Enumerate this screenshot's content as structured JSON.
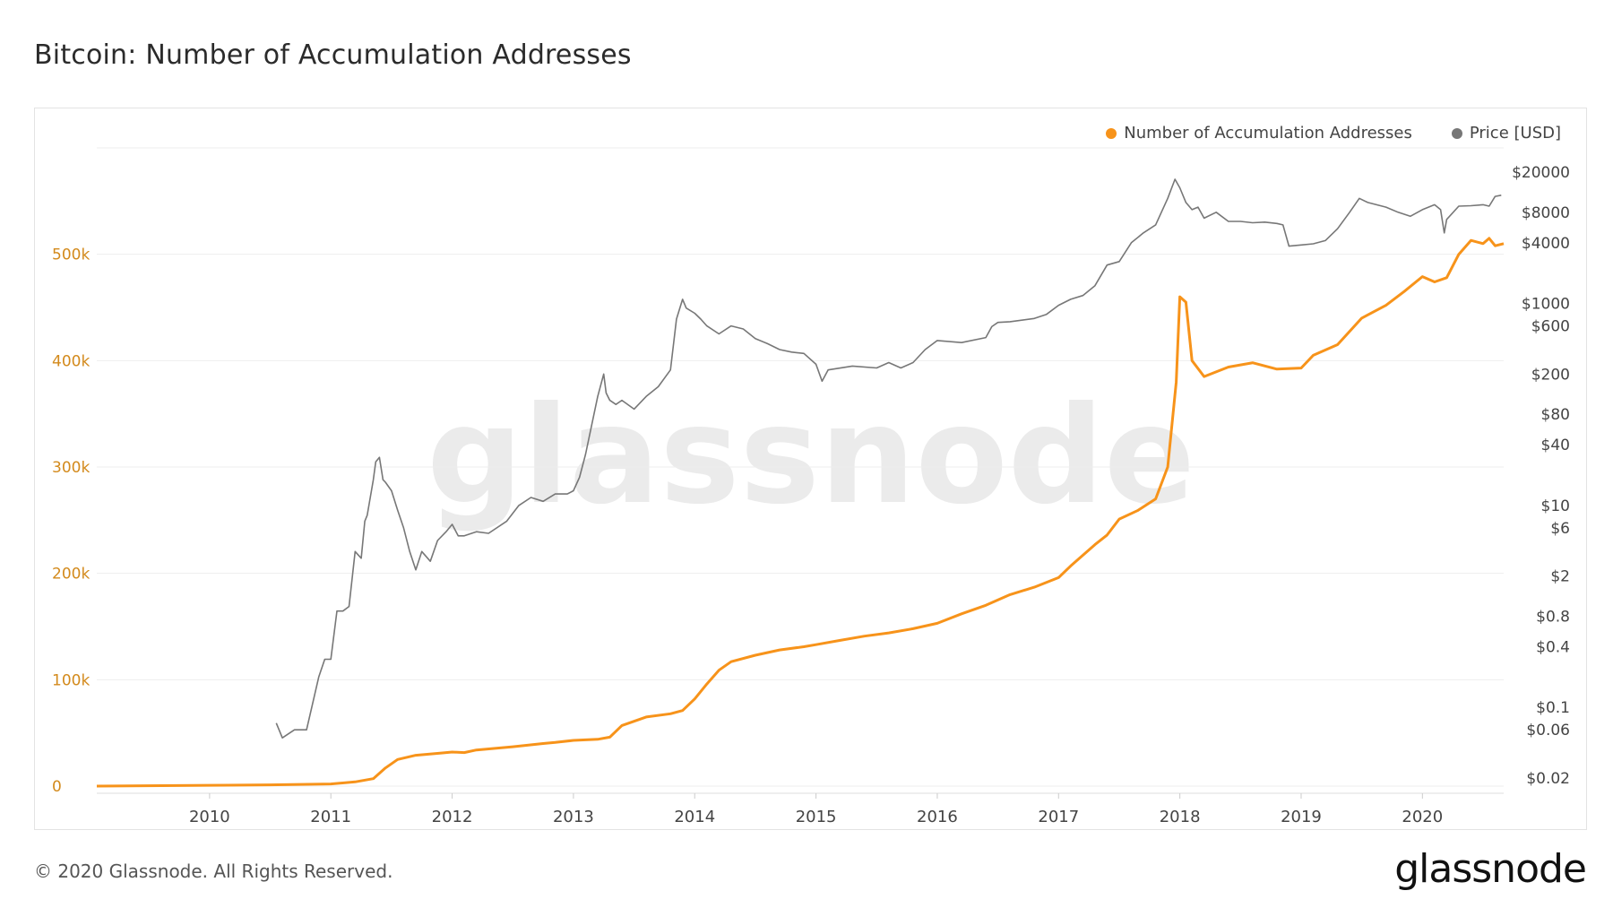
{
  "title": "Bitcoin: Number of Accumulation Addresses",
  "footer": "© 2020 Glassnode. All Rights Reserved.",
  "brand": "glassnode",
  "watermark": "glassnode",
  "colors": {
    "accumulation": "#f7931a",
    "price": "#777777",
    "left_axis_text": "#d38a1c",
    "grid": "#eeeeee",
    "watermark": "#ebebeb"
  },
  "chart_data": {
    "type": "line",
    "grid": true,
    "legend_position": "top-right",
    "x_ticks": [
      "2010",
      "2011",
      "2012",
      "2013",
      "2014",
      "2015",
      "2016",
      "2017",
      "2018",
      "2019",
      "2020"
    ],
    "xlim": [
      2009.07,
      2020.67
    ],
    "y_left": {
      "ticks": [
        0,
        100000,
        200000,
        300000,
        400000,
        500000
      ],
      "tick_labels": [
        "0",
        "100k",
        "200k",
        "300k",
        "400k",
        "500k"
      ],
      "ylim": [
        0,
        600000
      ]
    },
    "y_right": {
      "scale": "log",
      "ticks": [
        0.02,
        0.06,
        0.1,
        0.4,
        0.8,
        2,
        6,
        10,
        40,
        80,
        200,
        600,
        1000,
        4000,
        8000,
        20000
      ],
      "tick_labels": [
        "$0.02",
        "$0.06",
        "$0.1",
        "$0.4",
        "$0.8",
        "$2",
        "$6",
        "$10",
        "$40",
        "$80",
        "$200",
        "$600",
        "$1000",
        "$4000",
        "$8000",
        "$20000"
      ]
    },
    "series": [
      {
        "name": "Number of Accumulation Addresses",
        "axis": "left",
        "x": [
          2009.07,
          2010.0,
          2010.5,
          2011.0,
          2011.2,
          2011.35,
          2011.45,
          2011.55,
          2011.7,
          2011.9,
          2012.0,
          2012.1,
          2012.2,
          2012.5,
          2012.75,
          2012.85,
          2013.0,
          2013.2,
          2013.3,
          2013.4,
          2013.6,
          2013.8,
          2013.9,
          2014.0,
          2014.1,
          2014.2,
          2014.3,
          2014.5,
          2014.7,
          2014.9,
          2015.0,
          2015.2,
          2015.4,
          2015.6,
          2015.8,
          2016.0,
          2016.2,
          2016.4,
          2016.6,
          2016.8,
          2017.0,
          2017.1,
          2017.3,
          2017.4,
          2017.5,
          2017.65,
          2017.8,
          2017.9,
          2017.97,
          2018.0,
          2018.05,
          2018.1,
          2018.2,
          2018.4,
          2018.6,
          2018.8,
          2019.0,
          2019.1,
          2019.3,
          2019.5,
          2019.7,
          2019.85,
          2020.0,
          2020.1,
          2020.2,
          2020.3,
          2020.4,
          2020.5,
          2020.55,
          2020.6,
          2020.67
        ],
        "y": [
          0,
          800,
          1200,
          2000,
          4000,
          7000,
          17000,
          25000,
          29000,
          31000,
          32000,
          31500,
          34000,
          37000,
          40000,
          41000,
          43000,
          44000,
          46000,
          57000,
          65000,
          68000,
          71000,
          82000,
          96000,
          109000,
          117000,
          123000,
          128000,
          131000,
          133000,
          137000,
          141000,
          144000,
          148000,
          153000,
          162000,
          170000,
          180000,
          187000,
          196000,
          207000,
          227000,
          236000,
          251000,
          259000,
          270000,
          300000,
          380000,
          460000,
          455000,
          400000,
          385000,
          394000,
          398000,
          392000,
          393000,
          405000,
          415000,
          440000,
          452000,
          465000,
          479000,
          474000,
          478000,
          500000,
          513000,
          510000,
          515000,
          508000,
          510000
        ]
      },
      {
        "name": "Price [USD]",
        "axis": "right",
        "x": [
          2010.55,
          2010.6,
          2010.7,
          2010.8,
          2010.9,
          2010.95,
          2011.0,
          2011.05,
          2011.1,
          2011.15,
          2011.2,
          2011.25,
          2011.28,
          2011.3,
          2011.35,
          2011.37,
          2011.4,
          2011.43,
          2011.45,
          2011.5,
          2011.55,
          2011.6,
          2011.65,
          2011.7,
          2011.75,
          2011.82,
          2011.88,
          2011.95,
          2012.0,
          2012.05,
          2012.1,
          2012.2,
          2012.3,
          2012.45,
          2012.55,
          2012.65,
          2012.75,
          2012.85,
          2012.95,
          2013.0,
          2013.05,
          2013.1,
          2013.2,
          2013.25,
          2013.27,
          2013.3,
          2013.35,
          2013.4,
          2013.5,
          2013.6,
          2013.7,
          2013.8,
          2013.85,
          2013.9,
          2013.93,
          2014.0,
          2014.05,
          2014.1,
          2014.2,
          2014.3,
          2014.4,
          2014.5,
          2014.6,
          2014.7,
          2014.8,
          2014.9,
          2015.0,
          2015.05,
          2015.1,
          2015.3,
          2015.5,
          2015.6,
          2015.7,
          2015.8,
          2015.9,
          2016.0,
          2016.2,
          2016.4,
          2016.45,
          2016.5,
          2016.6,
          2016.8,
          2016.9,
          2017.0,
          2017.1,
          2017.2,
          2017.3,
          2017.4,
          2017.5,
          2017.6,
          2017.7,
          2017.8,
          2017.9,
          2017.96,
          2018.0,
          2018.05,
          2018.1,
          2018.15,
          2018.2,
          2018.3,
          2018.4,
          2018.5,
          2018.6,
          2018.7,
          2018.8,
          2018.85,
          2018.9,
          2019.0,
          2019.1,
          2019.2,
          2019.3,
          2019.4,
          2019.48,
          2019.55,
          2019.7,
          2019.8,
          2019.9,
          2020.0,
          2020.1,
          2020.15,
          2020.18,
          2020.2,
          2020.3,
          2020.4,
          2020.5,
          2020.55,
          2020.6,
          2020.65
        ],
        "y": [
          0.07,
          0.05,
          0.06,
          0.06,
          0.2,
          0.3,
          0.3,
          0.9,
          0.9,
          1.0,
          3.5,
          3.0,
          7.0,
          8.0,
          18,
          27,
          30,
          18,
          17,
          14,
          9,
          6,
          3.5,
          2.3,
          3.5,
          2.8,
          4.5,
          5.5,
          6.5,
          5.0,
          5.0,
          5.5,
          5.3,
          7.0,
          10,
          12,
          11,
          13,
          13,
          14,
          19,
          32,
          120,
          200,
          130,
          110,
          100,
          110,
          90,
          120,
          150,
          220,
          700,
          1100,
          900,
          800,
          700,
          600,
          500,
          600,
          560,
          450,
          400,
          350,
          330,
          320,
          250,
          170,
          220,
          240,
          230,
          260,
          230,
          260,
          350,
          430,
          410,
          460,
          590,
          650,
          660,
          710,
          780,
          960,
          1100,
          1200,
          1500,
          2400,
          2600,
          4000,
          5000,
          6000,
          11000,
          17000,
          14000,
          10000,
          8500,
          9000,
          7000,
          8000,
          6500,
          6500,
          6300,
          6400,
          6200,
          6000,
          3700,
          3800,
          3900,
          4200,
          5500,
          8000,
          11000,
          10000,
          9000,
          8000,
          7300,
          8500,
          9500,
          8500,
          5000,
          6800,
          9200,
          9300,
          9500,
          9200,
          11500,
          11800
        ]
      }
    ]
  }
}
